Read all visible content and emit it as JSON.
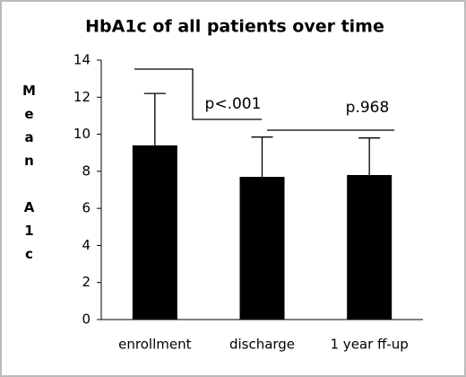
{
  "chart_data": {
    "type": "bar",
    "title": "HbA1c of all patients over time",
    "y_label": "Mean A1c",
    "categories": [
      "enrollment",
      "discharge",
      "1 year ff-up"
    ],
    "values": [
      9.4,
      7.7,
      7.8
    ],
    "errors": [
      2.8,
      2.15,
      2.0
    ],
    "color": "#000000",
    "ylim": [
      0,
      14
    ],
    "yticks": [
      0,
      2,
      4,
      6,
      8,
      10,
      12,
      14
    ],
    "annotations": [
      "p<.001",
      "p.968"
    ]
  }
}
